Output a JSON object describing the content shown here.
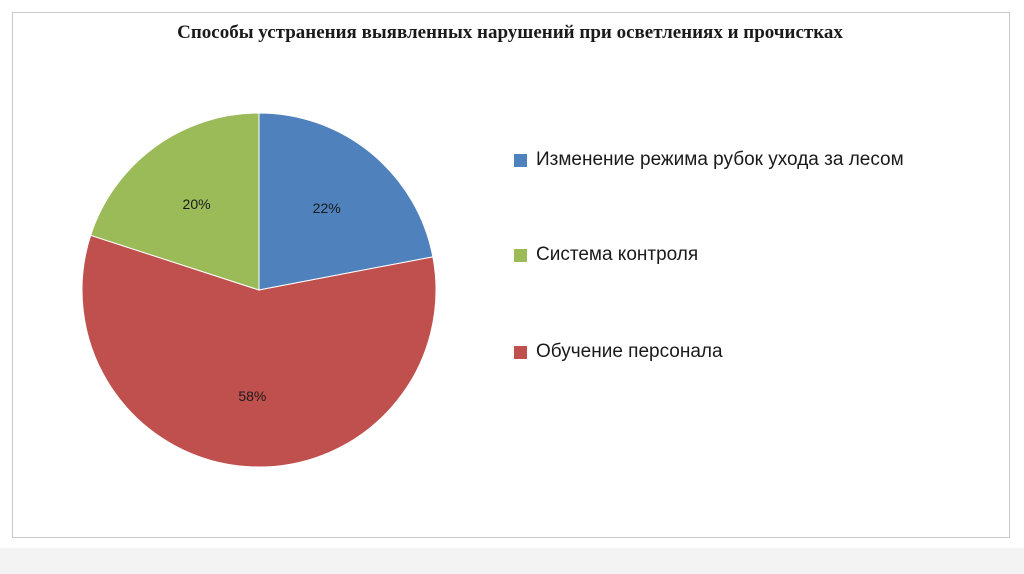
{
  "chart_data": {
    "type": "pie",
    "title": "Способы устранения выявленных нарушений при осветлениях и прочистках",
    "categories": [
      "Изменение режима рубок ухода за лесом",
      "Система контроля",
      "Обучение персонала"
    ],
    "values": [
      22,
      20,
      58
    ],
    "data_labels": [
      "22%",
      "20%",
      "58%"
    ],
    "colors": [
      "#4f81bd",
      "#9bbb59",
      "#c0504d"
    ],
    "legend_position": "right",
    "start_angle": "12 o'clock",
    "direction": "clockwise, blue then red then green"
  }
}
